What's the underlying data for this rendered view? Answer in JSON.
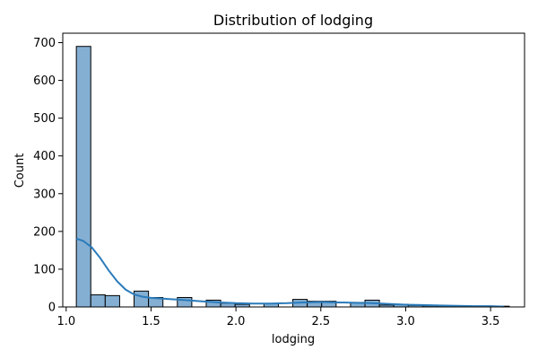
{
  "chart_data": {
    "type": "bar",
    "title": "Distribution of lodging",
    "xlabel": "lodging",
    "ylabel": "Count",
    "xlim": [
      0.98,
      3.7
    ],
    "ylim": [
      0,
      725
    ],
    "xticks": [
      1.0,
      1.5,
      2.0,
      2.5,
      3.0,
      3.5
    ],
    "xtick_labels": [
      "1.0",
      "1.5",
      "2.0",
      "2.5",
      "3.0",
      "3.5"
    ],
    "yticks": [
      0,
      100,
      200,
      300,
      400,
      500,
      600,
      700
    ],
    "ytick_labels": [
      "0",
      "100",
      "200",
      "300",
      "400",
      "500",
      "600",
      "700"
    ],
    "bins": [
      {
        "x0": 1.06,
        "x1": 1.145,
        "count": 690
      },
      {
        "x0": 1.145,
        "x1": 1.23,
        "count": 32
      },
      {
        "x0": 1.23,
        "x1": 1.315,
        "count": 30
      },
      {
        "x0": 1.315,
        "x1": 1.4,
        "count": 0
      },
      {
        "x0": 1.4,
        "x1": 1.485,
        "count": 42
      },
      {
        "x0": 1.485,
        "x1": 1.57,
        "count": 25
      },
      {
        "x0": 1.57,
        "x1": 1.655,
        "count": 0
      },
      {
        "x0": 1.655,
        "x1": 1.74,
        "count": 25
      },
      {
        "x0": 1.74,
        "x1": 1.825,
        "count": 0
      },
      {
        "x0": 1.825,
        "x1": 1.91,
        "count": 18
      },
      {
        "x0": 1.91,
        "x1": 1.995,
        "count": 10
      },
      {
        "x0": 1.995,
        "x1": 2.08,
        "count": 7
      },
      {
        "x0": 2.08,
        "x1": 2.165,
        "count": 0
      },
      {
        "x0": 2.165,
        "x1": 2.25,
        "count": 9
      },
      {
        "x0": 2.25,
        "x1": 2.335,
        "count": 0
      },
      {
        "x0": 2.335,
        "x1": 2.42,
        "count": 20
      },
      {
        "x0": 2.42,
        "x1": 2.505,
        "count": 15
      },
      {
        "x0": 2.505,
        "x1": 2.59,
        "count": 15
      },
      {
        "x0": 2.59,
        "x1": 2.675,
        "count": 0
      },
      {
        "x0": 2.675,
        "x1": 2.76,
        "count": 12
      },
      {
        "x0": 2.76,
        "x1": 2.845,
        "count": 18
      },
      {
        "x0": 2.845,
        "x1": 2.93,
        "count": 5
      },
      {
        "x0": 2.93,
        "x1": 3.015,
        "count": 7
      },
      {
        "x0": 3.015,
        "x1": 3.1,
        "count": 4
      },
      {
        "x0": 3.1,
        "x1": 3.185,
        "count": 3
      },
      {
        "x0": 3.185,
        "x1": 3.27,
        "count": 3
      },
      {
        "x0": 3.27,
        "x1": 3.355,
        "count": 2
      },
      {
        "x0": 3.355,
        "x1": 3.44,
        "count": 2
      },
      {
        "x0": 3.44,
        "x1": 3.525,
        "count": 2
      },
      {
        "x0": 3.525,
        "x1": 3.61,
        "count": 2
      }
    ],
    "kde": {
      "x": [
        1.06,
        1.1,
        1.15,
        1.2,
        1.25,
        1.3,
        1.35,
        1.4,
        1.45,
        1.5,
        1.6,
        1.7,
        1.8,
        1.9,
        2.0,
        2.1,
        2.2,
        2.3,
        2.4,
        2.5,
        2.6,
        2.7,
        2.8,
        2.9,
        3.0,
        3.1,
        3.2,
        3.3,
        3.4,
        3.5,
        3.58
      ],
      "y": [
        181,
        175,
        158,
        130,
        97,
        68,
        46,
        33,
        27,
        24,
        21,
        18,
        15,
        12,
        10,
        9,
        9,
        10,
        12,
        13,
        12,
        11,
        10,
        8,
        6,
        5,
        4,
        3,
        2,
        2,
        1
      ]
    },
    "grid": false,
    "colors": {
      "bar_fill": "#84afd3",
      "bar_edge": "#000000",
      "kde_line": "#2b7bba"
    }
  }
}
